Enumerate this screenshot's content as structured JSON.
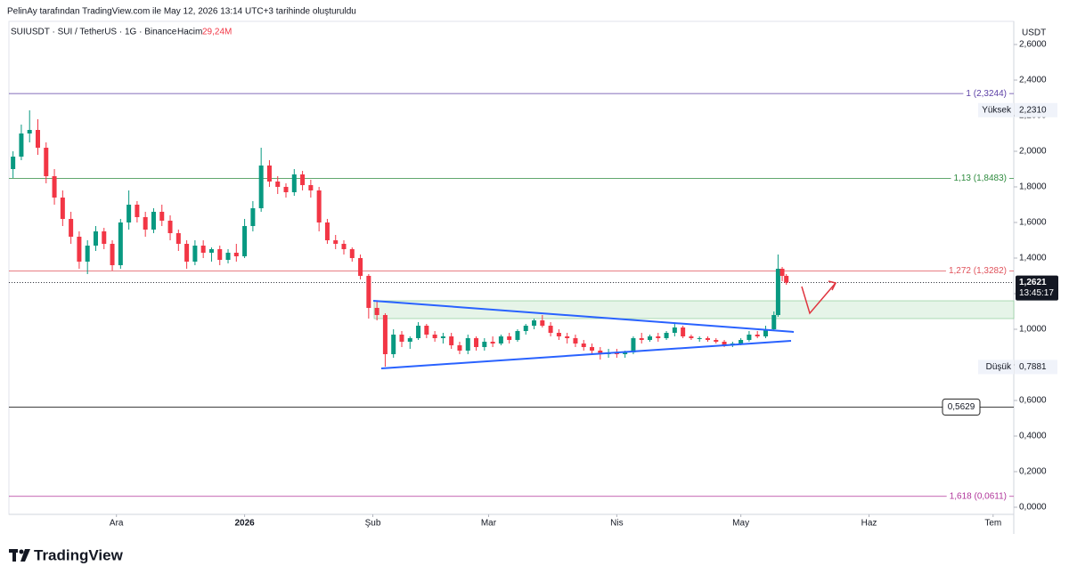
{
  "header": {
    "credit": "PelinAy tarafından TradingView.com ile May 12, 2026 13:14 UTC+3 tarihinde oluşturuldu",
    "symbol": "SUIUSDT · SUI / TetherUS · 1G · Binance",
    "volume_label": "Hacim",
    "volume_value": "29,24M"
  },
  "footer": {
    "logo": "TradingView"
  },
  "chart_data": {
    "type": "candlestick",
    "y_axis_label": "USDT",
    "xlim": [
      -26,
      217
    ],
    "ylim": [
      -0.04,
      2.71
    ],
    "xticks": [
      {
        "value": 0,
        "label": "Ara"
      },
      {
        "value": 31,
        "label": "2026"
      },
      {
        "value": 62,
        "label": "Şub"
      },
      {
        "value": 90,
        "label": "Mar"
      },
      {
        "value": 121,
        "label": "Nis"
      },
      {
        "value": 151,
        "label": "May"
      },
      {
        "value": 182,
        "label": "Haz"
      },
      {
        "value": 212,
        "label": "Tem"
      }
    ],
    "yticks": [
      {
        "value": 0,
        "label": "0,0000"
      },
      {
        "value": 0.2,
        "label": "0,2000"
      },
      {
        "value": 0.4,
        "label": "0,4000"
      },
      {
        "value": 0.6,
        "label": "0,6000"
      },
      {
        "value": 0.8,
        "label": "0,8000"
      },
      {
        "value": 1,
        "label": "1,0000"
      },
      {
        "value": 1.2,
        "label": "1,2000"
      },
      {
        "value": 1.4,
        "label": "1,4000"
      },
      {
        "value": 1.6,
        "label": "1,6000"
      },
      {
        "value": 1.8,
        "label": "1,8000"
      },
      {
        "value": 2,
        "label": "2,0000"
      },
      {
        "value": 2.2,
        "label": "2,2000"
      },
      {
        "value": 2.4,
        "label": "2,4000"
      },
      {
        "value": 2.6,
        "label": "2,6000"
      }
    ],
    "up_color": "#089981",
    "down_color": "#f23645",
    "x": [
      -25,
      -23,
      -21,
      -19,
      -17,
      -15,
      -13,
      -11,
      -9,
      -7,
      -5,
      -3,
      -1,
      1,
      3,
      5,
      7,
      9,
      11,
      13,
      15,
      17,
      19,
      21,
      23,
      25,
      27,
      29,
      31,
      33,
      35,
      37,
      39,
      41,
      43,
      45,
      47,
      49,
      51,
      53,
      55,
      57,
      59,
      61,
      63,
      65,
      67,
      69,
      71,
      73,
      75,
      77,
      79,
      81,
      83,
      85,
      87,
      89,
      91,
      93,
      95,
      97,
      99,
      101,
      103,
      105,
      107,
      109,
      111,
      113,
      115,
      117,
      119,
      121,
      123,
      125,
      127,
      129,
      131,
      133,
      135,
      137,
      139,
      141,
      143,
      145,
      147,
      149,
      151,
      153,
      155,
      157,
      159,
      160,
      161,
      162
    ],
    "open": [
      1.9,
      1.97,
      2.1,
      2.12,
      2.02,
      1.86,
      1.74,
      1.62,
      1.52,
      1.38,
      1.47,
      1.55,
      1.48,
      1.36,
      1.6,
      1.7,
      1.63,
      1.56,
      1.66,
      1.61,
      1.54,
      1.48,
      1.38,
      1.47,
      1.43,
      1.45,
      1.39,
      1.43,
      1.41,
      1.58,
      1.68,
      1.92,
      1.83,
      1.8,
      1.77,
      1.87,
      1.81,
      1.78,
      1.6,
      1.5,
      1.48,
      1.45,
      1.4,
      1.3,
      1.12,
      1.08,
      0.86,
      0.97,
      0.93,
      0.95,
      1.02,
      0.97,
      0.95,
      0.96,
      0.91,
      0.88,
      0.95,
      0.9,
      0.93,
      0.92,
      0.96,
      0.94,
      0.99,
      1.02,
      1.05,
      1.02,
      0.98,
      0.96,
      0.95,
      0.92,
      0.9,
      0.88,
      0.86,
      0.87,
      0.86,
      0.87,
      0.95,
      0.94,
      0.96,
      0.95,
      0.98,
      1.01,
      0.96,
      0.95,
      0.95,
      0.94,
      0.93,
      0.91,
      0.92,
      0.94,
      0.97,
      0.96,
      1.0,
      1.08,
      1.34,
      1.3
    ],
    "high": [
      2.0,
      2.15,
      2.23,
      2.18,
      2.05,
      1.9,
      1.78,
      1.66,
      1.55,
      1.5,
      1.58,
      1.57,
      1.5,
      1.62,
      1.78,
      1.72,
      1.66,
      1.68,
      1.7,
      1.64,
      1.56,
      1.5,
      1.5,
      1.5,
      1.46,
      1.47,
      1.45,
      1.48,
      1.62,
      1.72,
      2.02,
      1.95,
      1.86,
      1.82,
      1.9,
      1.89,
      1.84,
      1.8,
      1.62,
      1.53,
      1.5,
      1.46,
      1.42,
      1.31,
      1.16,
      1.09,
      1.0,
      0.99,
      0.96,
      1.04,
      1.03,
      0.99,
      0.98,
      0.98,
      0.93,
      0.97,
      0.96,
      0.95,
      0.96,
      0.97,
      0.98,
      1.0,
      1.03,
      1.06,
      1.08,
      1.04,
      1.0,
      0.98,
      0.97,
      0.94,
      0.92,
      0.9,
      0.89,
      0.89,
      0.88,
      0.96,
      0.98,
      0.97,
      0.98,
      0.99,
      1.03,
      1.02,
      0.97,
      0.96,
      0.96,
      0.95,
      0.94,
      0.93,
      0.95,
      0.99,
      0.99,
      1.02,
      1.1,
      1.42,
      1.35,
      1.31
    ],
    "low": [
      1.85,
      1.95,
      2.05,
      1.98,
      1.82,
      1.7,
      1.58,
      1.48,
      1.34,
      1.31,
      1.44,
      1.45,
      1.33,
      1.34,
      1.56,
      1.6,
      1.52,
      1.54,
      1.58,
      1.5,
      1.44,
      1.34,
      1.36,
      1.4,
      1.38,
      1.36,
      1.37,
      1.38,
      1.4,
      1.55,
      1.66,
      1.8,
      1.76,
      1.74,
      1.75,
      1.78,
      1.74,
      1.55,
      1.48,
      1.45,
      1.42,
      1.38,
      1.28,
      1.06,
      1.05,
      0.79,
      0.84,
      0.9,
      0.89,
      0.94,
      0.95,
      0.93,
      0.92,
      0.89,
      0.86,
      0.86,
      0.88,
      0.88,
      0.9,
      0.91,
      0.92,
      0.93,
      0.97,
      1.0,
      1.01,
      0.96,
      0.94,
      0.92,
      0.9,
      0.88,
      0.86,
      0.83,
      0.84,
      0.84,
      0.84,
      0.86,
      0.92,
      0.93,
      0.93,
      0.94,
      0.96,
      0.95,
      0.94,
      0.93,
      0.93,
      0.92,
      0.9,
      0.9,
      0.91,
      0.93,
      0.95,
      0.95,
      0.99,
      1.07,
      1.27,
      1.25
    ],
    "close": [
      1.97,
      2.1,
      2.12,
      2.02,
      1.86,
      1.74,
      1.62,
      1.52,
      1.38,
      1.47,
      1.55,
      1.48,
      1.36,
      1.6,
      1.7,
      1.63,
      1.56,
      1.66,
      1.61,
      1.54,
      1.48,
      1.38,
      1.47,
      1.43,
      1.45,
      1.39,
      1.43,
      1.41,
      1.58,
      1.68,
      1.92,
      1.83,
      1.8,
      1.77,
      1.87,
      1.81,
      1.78,
      1.6,
      1.5,
      1.48,
      1.45,
      1.4,
      1.3,
      1.12,
      1.08,
      0.86,
      0.97,
      0.93,
      0.95,
      1.02,
      0.97,
      0.95,
      0.96,
      0.91,
      0.88,
      0.95,
      0.9,
      0.93,
      0.92,
      0.96,
      0.94,
      0.99,
      1.02,
      1.05,
      1.02,
      0.98,
      0.96,
      0.95,
      0.92,
      0.9,
      0.88,
      0.86,
      0.87,
      0.86,
      0.87,
      0.95,
      0.94,
      0.96,
      0.95,
      0.98,
      1.01,
      0.96,
      0.95,
      0.95,
      0.94,
      0.93,
      0.91,
      0.92,
      0.94,
      0.97,
      0.96,
      1.0,
      1.08,
      1.34,
      1.3,
      1.262
    ],
    "levels": [
      {
        "label": "1 (2,3244)",
        "value": 2.3244,
        "color": "#5b3fa6"
      },
      {
        "label": "1,13 (1,8483)",
        "value": 1.8483,
        "color": "#2e8b3e"
      },
      {
        "label": "1,272 (1,3282)",
        "value": 1.3282,
        "color": "#e0535c"
      },
      {
        "label": "1,618 (0,0611)",
        "value": 0.0611,
        "color": "#b0359a"
      }
    ],
    "support": {
      "label": "0,5629",
      "value": 0.5629,
      "color": "#222222"
    },
    "high_marker": {
      "label": "Yüksek",
      "value": 2.231,
      "value_label": "2,2310"
    },
    "low_marker": {
      "label": "Düşük",
      "value": 0.7881,
      "value_label": "0,7881"
    },
    "last_price": {
      "value": 1.2621,
      "value_label": "1,2621",
      "countdown": "13:45:17"
    }
  }
}
